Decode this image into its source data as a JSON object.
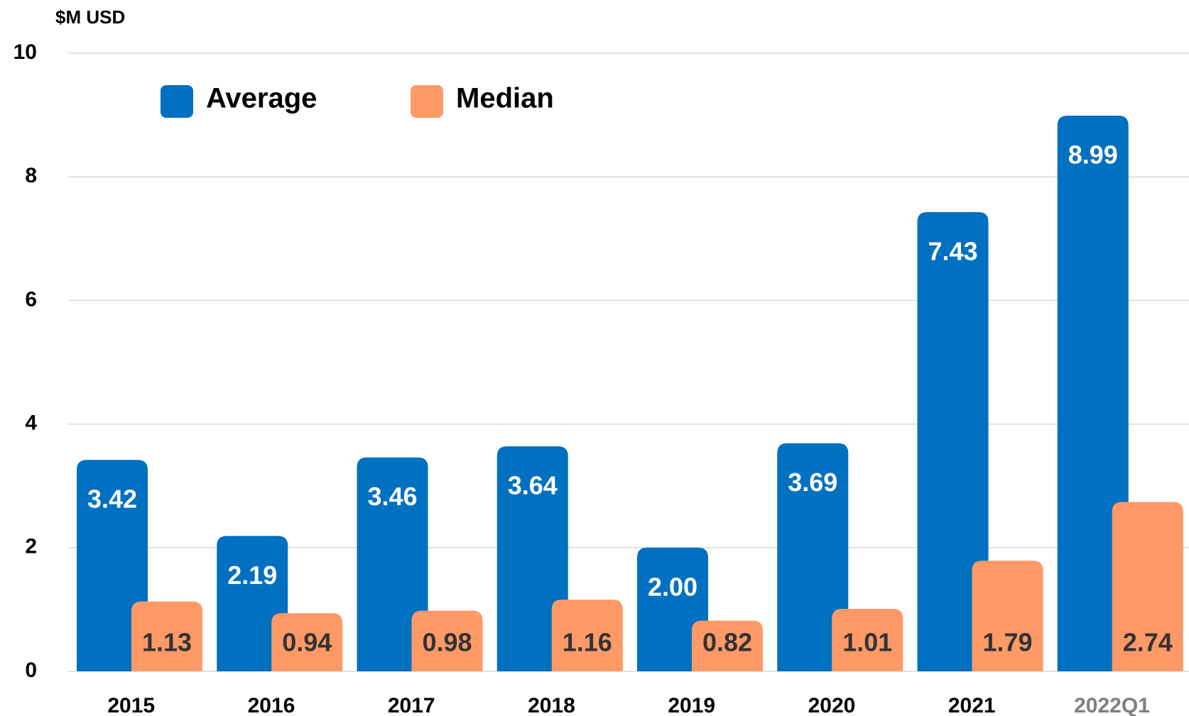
{
  "chart_data": {
    "type": "bar",
    "y_label": "$M USD",
    "categories": [
      "2015",
      "2016",
      "2017",
      "2018",
      "2019",
      "2020",
      "2021",
      "2022Q1"
    ],
    "series": [
      {
        "name": "Average",
        "color": "#0070c0",
        "values": [
          3.42,
          2.19,
          3.46,
          3.64,
          2.0,
          3.69,
          7.43,
          8.99
        ],
        "value_labels": [
          "3.42",
          "2.19",
          "3.46",
          "3.64",
          "2.00",
          "3.69",
          "7.43",
          "8.99"
        ]
      },
      {
        "name": "Median",
        "color": "#ff9966",
        "values": [
          1.13,
          0.94,
          0.98,
          1.16,
          0.82,
          1.01,
          1.79,
          2.74
        ],
        "value_labels": [
          "1.13",
          "0.94",
          "0.98",
          "1.16",
          "0.82",
          "1.01",
          "1.79",
          "2.74"
        ]
      }
    ],
    "ylim": [
      0,
      10
    ],
    "yticks": [
      0,
      2,
      4,
      6,
      8,
      10
    ],
    "grid": true,
    "legend": "top-left"
  }
}
